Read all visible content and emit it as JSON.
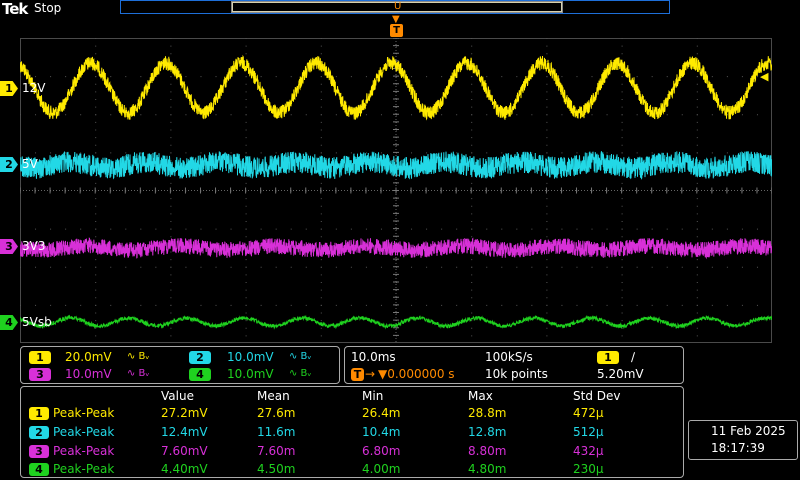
{
  "header": {
    "brand": "Tek",
    "state": "Stop",
    "trigger_marker": "T",
    "record_marker": "U"
  },
  "colors": {
    "ch1": "#ffea00",
    "ch2": "#22d8e6",
    "ch3": "#d830d8",
    "ch4": "#1fd21f",
    "trigger": "#ff8a00",
    "graticule": "#4a4a4a"
  },
  "channels": [
    {
      "num": "1",
      "label": "12V"
    },
    {
      "num": "2",
      "label": "5V"
    },
    {
      "num": "3",
      "label": "3V3"
    },
    {
      "num": "4",
      "label": "5Vsb"
    }
  ],
  "vertical": [
    {
      "num": "1",
      "scale": "20.0mV",
      "bw": "∿ Bᵥ"
    },
    {
      "num": "2",
      "scale": "10.0mV",
      "bw": "∿ Bᵥ"
    },
    {
      "num": "3",
      "scale": "10.0mV",
      "bw": "∿ Bᵥ"
    },
    {
      "num": "4",
      "scale": "10.0mV",
      "bw": "∿ Bᵥ"
    }
  ],
  "horizontal": {
    "timebase": "10.0ms",
    "sample_rate": "100kS/s",
    "trigger_channel": "1",
    "slope": "∕",
    "position": "▼0.000000 s",
    "record_length": "10k points",
    "trigger_level": "5.20mV",
    "trigger_badge": "T",
    "trigger_arrow": "→"
  },
  "measurements": {
    "headers": [
      "Value",
      "Mean",
      "Min",
      "Max",
      "Std Dev"
    ],
    "rows": [
      {
        "num": "1",
        "type": "Peak-Peak",
        "value": "27.2mV",
        "mean": "27.6m",
        "min": "26.4m",
        "max": "28.8m",
        "std": "472µ"
      },
      {
        "num": "2",
        "type": "Peak-Peak",
        "value": "12.4mV",
        "mean": "11.6m",
        "min": "10.4m",
        "max": "12.8m",
        "std": "512µ"
      },
      {
        "num": "3",
        "type": "Peak-Peak",
        "value": "7.60mV",
        "mean": "7.60m",
        "min": "6.80m",
        "max": "8.80m",
        "std": "432µ"
      },
      {
        "num": "4",
        "type": "Peak-Peak",
        "value": "4.40mV",
        "mean": "4.50m",
        "min": "4.00m",
        "max": "4.80m",
        "std": "230µ"
      }
    ]
  },
  "datetime": {
    "date": "11 Feb  2025",
    "time": "18:17:39"
  },
  "icons": {
    "ref_level": "left-pointing-triangle",
    "trigger": "trigger-T-marker"
  }
}
